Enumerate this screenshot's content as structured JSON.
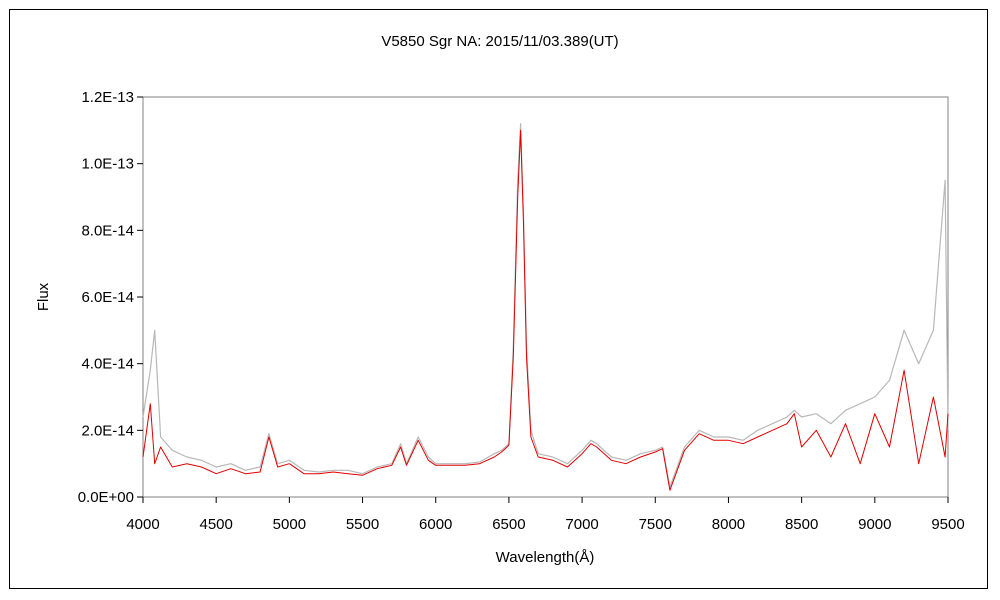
{
  "chart_data": {
    "type": "line",
    "title": "V5850 Sgr   NA:   2015/11/03.389(UT)",
    "xlabel": "Wavelength(Å)",
    "ylabel": "Flux",
    "xlim": [
      4000,
      9500
    ],
    "ylim": [
      0,
      1.2e-13
    ],
    "x_ticks": [
      4000,
      4500,
      5000,
      5500,
      6000,
      6500,
      7000,
      7500,
      8000,
      8500,
      9000,
      9500
    ],
    "x_tick_labels": [
      "4000",
      "4500",
      "5000",
      "5500",
      "6000",
      "6500",
      "7000",
      "7500",
      "8000",
      "8500",
      "9000",
      "9500"
    ],
    "y_ticks": [
      0,
      2e-14,
      4e-14,
      6e-14,
      8e-14,
      1e-13,
      1.2e-13
    ],
    "y_tick_labels": [
      "0.0E+00",
      "2.0E-14",
      "4.0E-14",
      "6.0E-14",
      "8.0E-14",
      "1.0E-13",
      "1.2E-13"
    ],
    "grid": false,
    "legend": false,
    "colors": {
      "raw": "#b8b8b8",
      "smoothed": "#e00000",
      "axis": "#808080"
    },
    "series": [
      {
        "style": "raw",
        "x": [
          4000,
          4050,
          4080,
          4120,
          4200,
          4300,
          4400,
          4500,
          4600,
          4700,
          4800,
          4860,
          4920,
          5000,
          5100,
          5200,
          5300,
          5400,
          5500,
          5600,
          5700,
          5760,
          5800,
          5880,
          5950,
          6000,
          6100,
          6200,
          6300,
          6400,
          6450,
          6500,
          6530,
          6560,
          6580,
          6600,
          6620,
          6650,
          6700,
          6800,
          6900,
          7000,
          7060,
          7100,
          7200,
          7300,
          7400,
          7500,
          7550,
          7600,
          7650,
          7700,
          7800,
          7900,
          8000,
          8100,
          8200,
          8300,
          8400,
          8450,
          8500,
          8600,
          8700,
          8800,
          8900,
          9000,
          9100,
          9200,
          9300,
          9400,
          9480,
          9500
        ],
        "y": [
          2.4e-14,
          3.8e-14,
          5e-14,
          1.8e-14,
          1.4e-14,
          1.2e-14,
          1.1e-14,
          9e-15,
          1e-14,
          8e-15,
          9e-15,
          1.9e-14,
          1e-14,
          1.1e-14,
          8e-15,
          7.5e-15,
          8e-15,
          8e-15,
          7e-15,
          9e-15,
          1e-14,
          1.6e-14,
          1e-14,
          1.8e-14,
          1.2e-14,
          1e-14,
          1e-14,
          1e-14,
          1.05e-14,
          1.3e-14,
          1.4e-14,
          1.6e-14,
          4.5e-14,
          9.5e-14,
          1.12e-13,
          8.5e-14,
          4.5e-14,
          2e-14,
          1.3e-14,
          1.2e-14,
          1e-14,
          1.4e-14,
          1.7e-14,
          1.6e-14,
          1.2e-14,
          1.1e-14,
          1.3e-14,
          1.4e-14,
          1.5e-14,
          3e-15,
          9e-15,
          1.5e-14,
          2e-14,
          1.8e-14,
          1.8e-14,
          1.7e-14,
          2e-14,
          2.2e-14,
          2.4e-14,
          2.6e-14,
          2.4e-14,
          2.5e-14,
          2.2e-14,
          2.6e-14,
          2.8e-14,
          3e-14,
          3.5e-14,
          5e-14,
          4e-14,
          5e-14,
          9.5e-14,
          2e-14
        ]
      },
      {
        "style": "smoothed",
        "x": [
          4000,
          4050,
          4080,
          4120,
          4200,
          4300,
          4400,
          4500,
          4600,
          4700,
          4800,
          4860,
          4920,
          5000,
          5100,
          5200,
          5300,
          5400,
          5500,
          5600,
          5700,
          5760,
          5800,
          5880,
          5950,
          6000,
          6100,
          6200,
          6300,
          6400,
          6450,
          6500,
          6530,
          6560,
          6580,
          6600,
          6620,
          6650,
          6700,
          6800,
          6900,
          7000,
          7060,
          7100,
          7200,
          7300,
          7400,
          7500,
          7550,
          7600,
          7650,
          7700,
          7800,
          7900,
          8000,
          8100,
          8200,
          8300,
          8400,
          8450,
          8500,
          8600,
          8700,
          8800,
          8900,
          9000,
          9100,
          9200,
          9300,
          9400,
          9480,
          9500
        ],
        "y": [
          1.2e-14,
          2.8e-14,
          1e-14,
          1.5e-14,
          9e-15,
          1e-14,
          9e-15,
          7e-15,
          8.5e-15,
          7e-15,
          7.5e-15,
          1.8e-14,
          9e-15,
          1e-14,
          7e-15,
          7e-15,
          7.5e-15,
          7e-15,
          6.5e-15,
          8.5e-15,
          9.5e-15,
          1.5e-14,
          9.5e-15,
          1.7e-14,
          1.1e-14,
          9.5e-15,
          9.5e-15,
          9.5e-15,
          1e-14,
          1.2e-14,
          1.35e-14,
          1.55e-14,
          4.2e-14,
          9e-14,
          1.1e-13,
          8.2e-14,
          4.2e-14,
          1.8e-14,
          1.2e-14,
          1.1e-14,
          9e-15,
          1.3e-14,
          1.6e-14,
          1.5e-14,
          1.1e-14,
          1e-14,
          1.2e-14,
          1.35e-14,
          1.45e-14,
          2e-15,
          8e-15,
          1.4e-14,
          1.9e-14,
          1.7e-14,
          1.7e-14,
          1.6e-14,
          1.8e-14,
          2e-14,
          2.2e-14,
          2.5e-14,
          1.5e-14,
          2e-14,
          1.2e-14,
          2.2e-14,
          1e-14,
          2.5e-14,
          1.5e-14,
          3.8e-14,
          1e-14,
          3e-14,
          1.2e-14,
          2.5e-14
        ]
      }
    ]
  }
}
